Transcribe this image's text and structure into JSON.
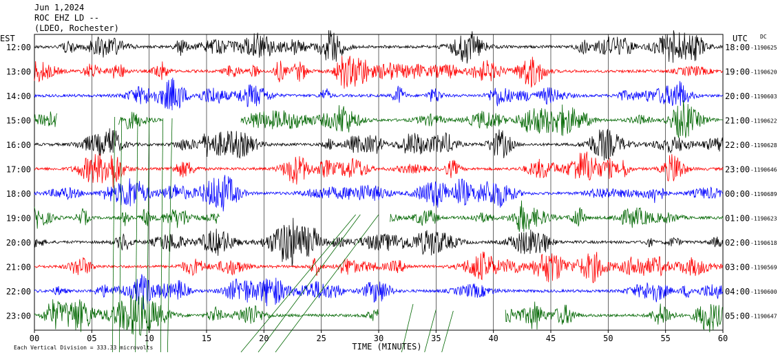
{
  "header": {
    "date": "Jun 1,2024",
    "station": "ROC EHZ LD --",
    "network": "(LDEO, Rochester)"
  },
  "chart_data": {
    "type": "line",
    "title": "Jun 1,2024",
    "subtitle": "ROC EHZ LD -- (LDEO, Rochester)",
    "left_axis_title": "EST",
    "right_axis_title": "UTC",
    "dc_label": "DC",
    "xlabel": "TIME (MINUTES)",
    "xlim": [
      0,
      60
    ],
    "x_ticks": [
      "00",
      "05",
      "10",
      "15",
      "20",
      "25",
      "30",
      "35",
      "40",
      "45",
      "50",
      "55",
      "60"
    ],
    "grid": "vertical lines every 5 minutes",
    "scale_note": "Each Vertical Division =  333.33 microvolts",
    "rows": [
      {
        "est": "12:00",
        "utc": "18:00",
        "dc": "-1190625",
        "color": "#000000"
      },
      {
        "est": "13:00",
        "utc": "19:00",
        "dc": "-1190620",
        "color": "#ff0000"
      },
      {
        "est": "14:00",
        "utc": "20:00",
        "dc": "-1190603",
        "color": "#0000ff"
      },
      {
        "est": "15:00",
        "utc": "21:00",
        "dc": "-1190622",
        "color": "#006600"
      },
      {
        "est": "16:00",
        "utc": "22:00",
        "dc": "-1190628",
        "color": "#000000"
      },
      {
        "est": "17:00",
        "utc": "23:00",
        "dc": "-1190646",
        "color": "#ff0000"
      },
      {
        "est": "18:00",
        "utc": "00:00",
        "dc": "-1190689",
        "color": "#0000ff"
      },
      {
        "est": "19:00",
        "utc": "01:00",
        "dc": "-1190623",
        "color": "#006600"
      },
      {
        "est": "20:00",
        "utc": "02:00",
        "dc": "-1190618",
        "color": "#000000"
      },
      {
        "est": "21:00",
        "utc": "03:00",
        "dc": "-1190569",
        "color": "#ff0000"
      },
      {
        "est": "22:00",
        "utc": "04:00",
        "dc": "-1190600",
        "color": "#0000ff"
      },
      {
        "est": "23:00",
        "utc": "05:00",
        "dc": "-1190647",
        "color": "#006600"
      }
    ],
    "gaps": [
      {
        "row": 3,
        "from_min": 2.0,
        "to_min": 7.3
      },
      {
        "row": 3,
        "from_min": 11.2,
        "to_min": 18.0
      },
      {
        "row": 7,
        "from_min": 16.2,
        "to_min": 31.0
      },
      {
        "row": 11,
        "from_min": 30.0,
        "to_min": 41.0
      }
    ]
  }
}
